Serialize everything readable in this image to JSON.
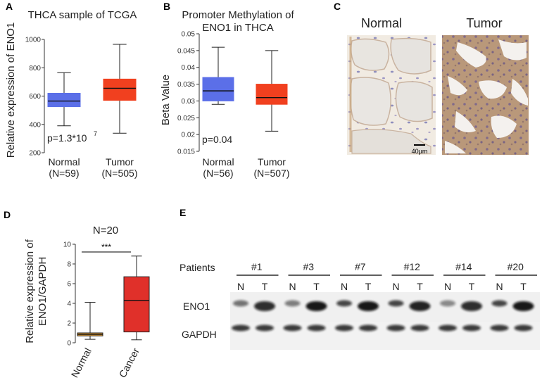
{
  "panels": {
    "A": {
      "label": "A",
      "title": "THCA sample of TCGA",
      "ylabel": "Relative expression of ENO1",
      "pvalue": "p=1.3*10",
      "pvalue_exp": "7",
      "categories": [
        {
          "name": "Normal",
          "n": "(N=59)"
        },
        {
          "name": "Tumor",
          "n": "(N=505)"
        }
      ]
    },
    "B": {
      "label": "B",
      "title_line1": "Promoter Methylation of",
      "title_line2": "ENO1 in THCA",
      "ylabel": "Beta Value",
      "pvalue": "p=0.04",
      "categories": [
        {
          "name": "Normal",
          "n": "(N=56)"
        },
        {
          "name": "Tumor",
          "n": "(N=507)"
        }
      ]
    },
    "C": {
      "label": "C",
      "normal_label": "Normal",
      "tumor_label": "Tumor",
      "scale_bar": "40μm"
    },
    "D": {
      "label": "D",
      "title": "N=20",
      "ylabel_line1": "Relative expression of",
      "ylabel_line2": "ENO1/GAPDH",
      "significance": "***",
      "categories": [
        "Normal",
        "Cancer"
      ]
    },
    "E": {
      "label": "E",
      "patients_label": "Patients",
      "patients": [
        "#1",
        "#3",
        "#7",
        "#12",
        "#14",
        "#20"
      ],
      "lane_labels": [
        "N",
        "T"
      ],
      "rows": [
        "ENO1",
        "GAPDH"
      ]
    }
  },
  "chart_data": [
    {
      "type": "box",
      "panel": "A",
      "title": "THCA sample of TCGA",
      "ylabel": "Relative expression of ENO1",
      "ylim": [
        200,
        1000
      ],
      "yticks": [
        200,
        400,
        600,
        800,
        1000
      ],
      "categories": [
        "Normal",
        "Tumor"
      ],
      "boxes": [
        {
          "name": "Normal",
          "min": 390,
          "q1": 525,
          "median": 565,
          "q3": 620,
          "max": 765,
          "color": "#5B6FE8"
        },
        {
          "name": "Tumor",
          "min": 338,
          "q1": 570,
          "median": 655,
          "q3": 720,
          "max": 965,
          "color": "#F1401F"
        }
      ]
    },
    {
      "type": "box",
      "panel": "B",
      "title": "Promoter Methylation of ENO1 in THCA",
      "ylabel": "Beta Value",
      "ylim": [
        0.015,
        0.05
      ],
      "yticks": [
        0.015,
        0.02,
        0.025,
        0.03,
        0.035,
        0.04,
        0.045,
        0.05
      ],
      "categories": [
        "Normal",
        "Tumor"
      ],
      "boxes": [
        {
          "name": "Normal",
          "min": 0.029,
          "q1": 0.03,
          "median": 0.033,
          "q3": 0.037,
          "max": 0.046,
          "color": "#5B6FE8"
        },
        {
          "name": "Tumor",
          "min": 0.021,
          "q1": 0.029,
          "median": 0.031,
          "q3": 0.035,
          "max": 0.045,
          "color": "#F1401F"
        }
      ]
    },
    {
      "type": "box",
      "panel": "D",
      "title": "N=20",
      "ylabel": "Relative expression of ENO1/GAPDH",
      "ylim": [
        0,
        10
      ],
      "yticks": [
        0,
        2,
        4,
        6,
        8,
        10
      ],
      "categories": [
        "Normal",
        "Cancer"
      ],
      "boxes": [
        {
          "name": "Normal",
          "min": 0.35,
          "q1": 0.7,
          "median": 0.85,
          "q3": 1.0,
          "max": 4.1,
          "color": "#E9A43A"
        },
        {
          "name": "Cancer",
          "min": 0.3,
          "q1": 1.1,
          "median": 4.3,
          "q3": 6.7,
          "max": 8.8,
          "color": "#E0302A"
        }
      ]
    }
  ]
}
